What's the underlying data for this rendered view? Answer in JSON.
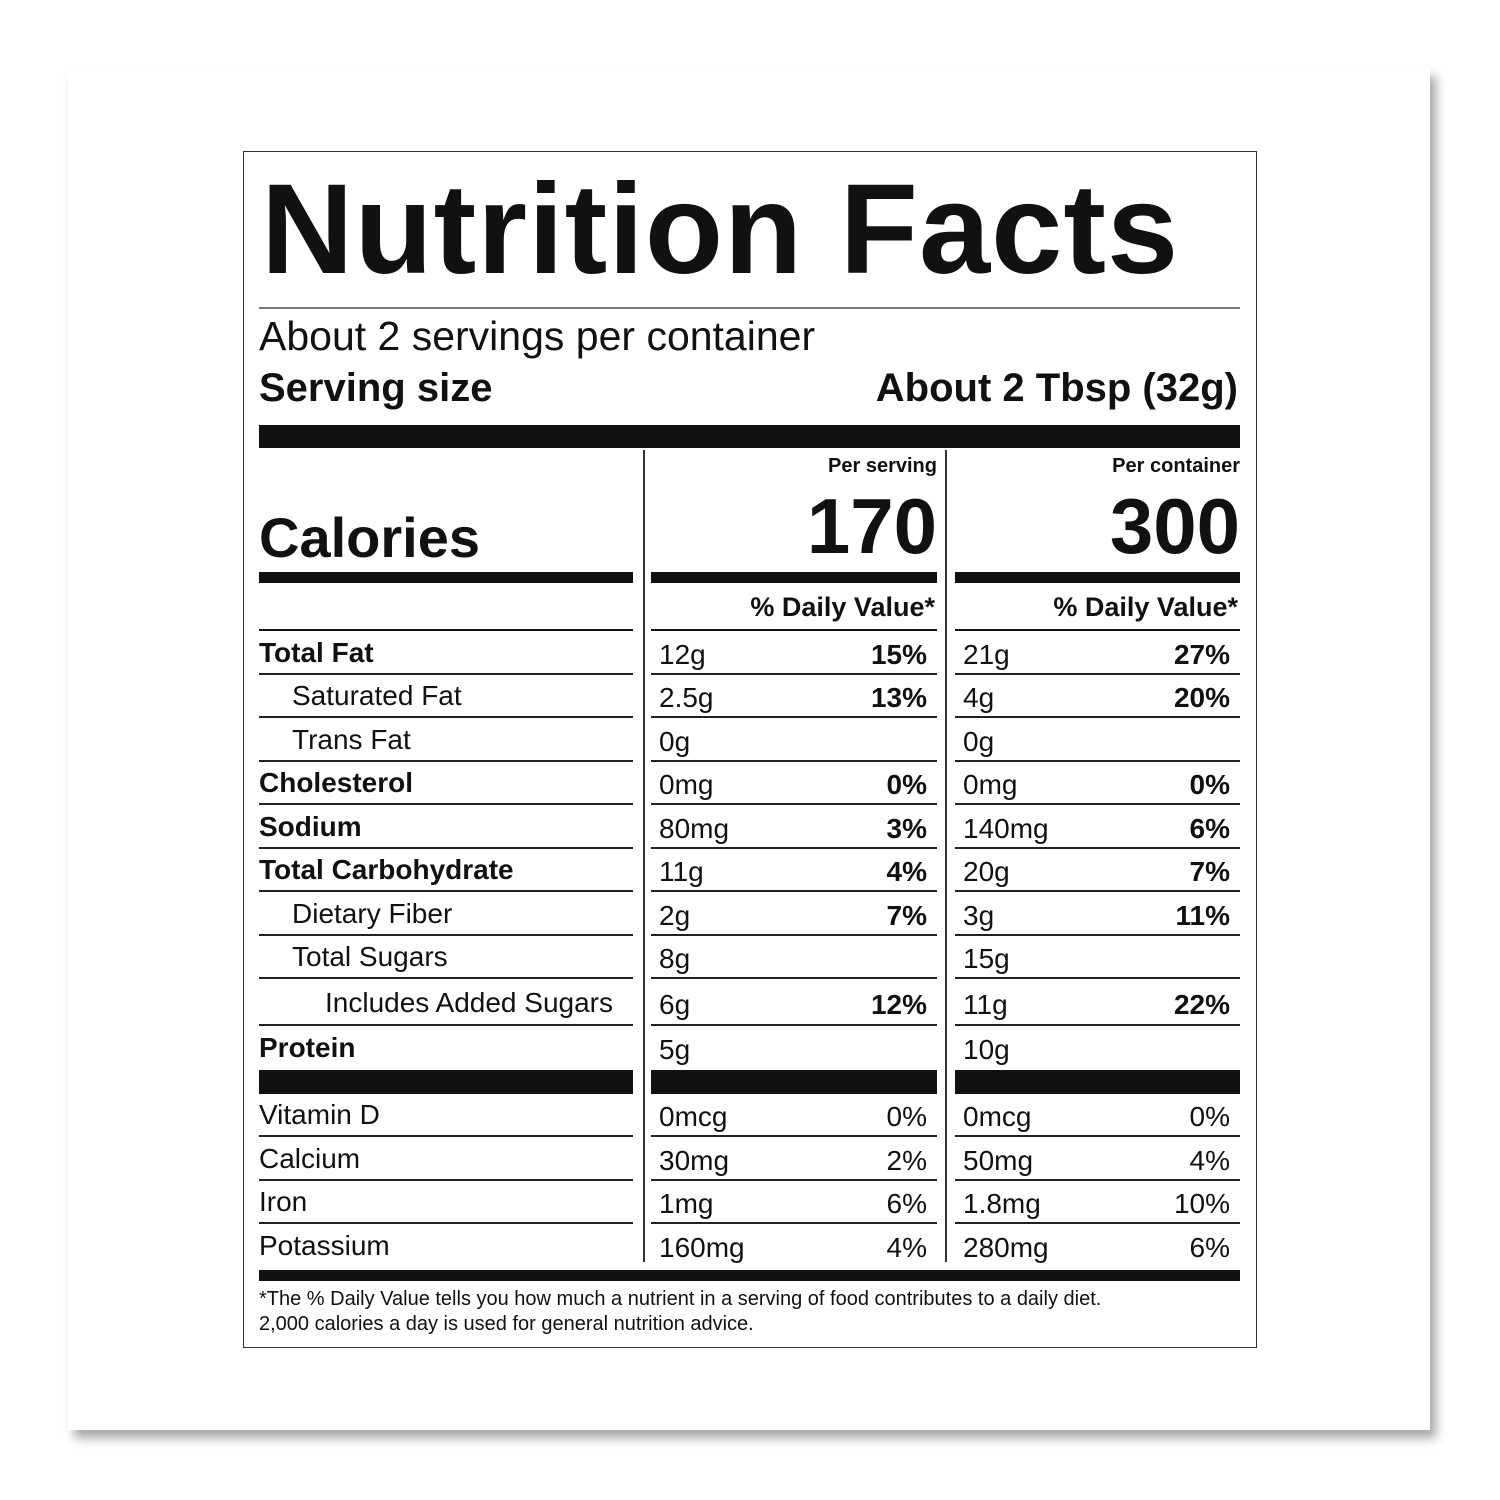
{
  "title": "Nutrition Facts",
  "servings": "About 2 servings per container",
  "serving_size": {
    "label": "Serving size",
    "value": "About 2 Tbsp (32g)"
  },
  "calories": {
    "label": "Calories",
    "columns": [
      {
        "header": "Per serving",
        "value": "170"
      },
      {
        "header": "Per container",
        "value": "300"
      }
    ]
  },
  "dv_header": [
    "% Daily Value*",
    "% Daily Value*"
  ],
  "nutrients": [
    {
      "name": "Total Fat",
      "serving": {
        "amount": "12g",
        "dv": "15%"
      },
      "container": {
        "amount": "21g",
        "dv": "27%"
      },
      "sub": [
        {
          "name": "Saturated Fat",
          "serving": {
            "amount": "2.5g",
            "dv": "13%"
          },
          "container": {
            "amount": "4g",
            "dv": "20%"
          }
        },
        {
          "name": "Trans Fat",
          "serving": {
            "amount": "0g"
          },
          "container": {
            "amount": "0g"
          }
        }
      ]
    },
    {
      "name": "Cholesterol",
      "serving": {
        "amount": "0mg",
        "dv": "0%"
      },
      "container": {
        "amount": "0mg",
        "dv": "0%"
      }
    },
    {
      "name": "Sodium",
      "serving": {
        "amount": "80mg",
        "dv": "3%"
      },
      "container": {
        "amount": "140mg",
        "dv": "6%"
      }
    },
    {
      "name": "Total Carbohydrate",
      "serving": {
        "amount": "11g",
        "dv": "4%"
      },
      "container": {
        "amount": "20g",
        "dv": "7%"
      },
      "sub": [
        {
          "name": "Dietary Fiber",
          "serving": {
            "amount": "2g",
            "dv": "7%"
          },
          "container": {
            "amount": "3g",
            "dv": "11%"
          }
        },
        {
          "name": "Total Sugars",
          "serving": {
            "amount": "8g"
          },
          "container": {
            "amount": "15g"
          },
          "sub": [
            {
              "name": "Includes Added Sugars",
              "serving": {
                "amount": "6g",
                "dv": "12%"
              },
              "container": {
                "amount": "11g",
                "dv": "22%"
              }
            }
          ]
        }
      ]
    },
    {
      "name": "Protein",
      "serving": {
        "amount": "5g"
      },
      "container": {
        "amount": "10g"
      }
    }
  ],
  "vitamins": [
    {
      "name": "Vitamin D",
      "serving": {
        "amount": "0mcg",
        "dv": "0%"
      },
      "container": {
        "amount": "0mcg",
        "dv": "0%"
      }
    },
    {
      "name": "Calcium",
      "serving": {
        "amount": "30mg",
        "dv": "2%"
      },
      "container": {
        "amount": "50mg",
        "dv": "4%"
      }
    },
    {
      "name": "Iron",
      "serving": {
        "amount": "1mg",
        "dv": "6%"
      },
      "container": {
        "amount": "1.8mg",
        "dv": "10%"
      }
    },
    {
      "name": "Potassium",
      "serving": {
        "amount": "160mg",
        "dv": "4%"
      },
      "container": {
        "amount": "280mg",
        "dv": "6%"
      }
    }
  ],
  "footnote": [
    "*The % Daily Value tells you how much a nutrient in a serving of food contributes to a daily diet.",
    "2,000 calories a day is used for general nutrition advice."
  ]
}
